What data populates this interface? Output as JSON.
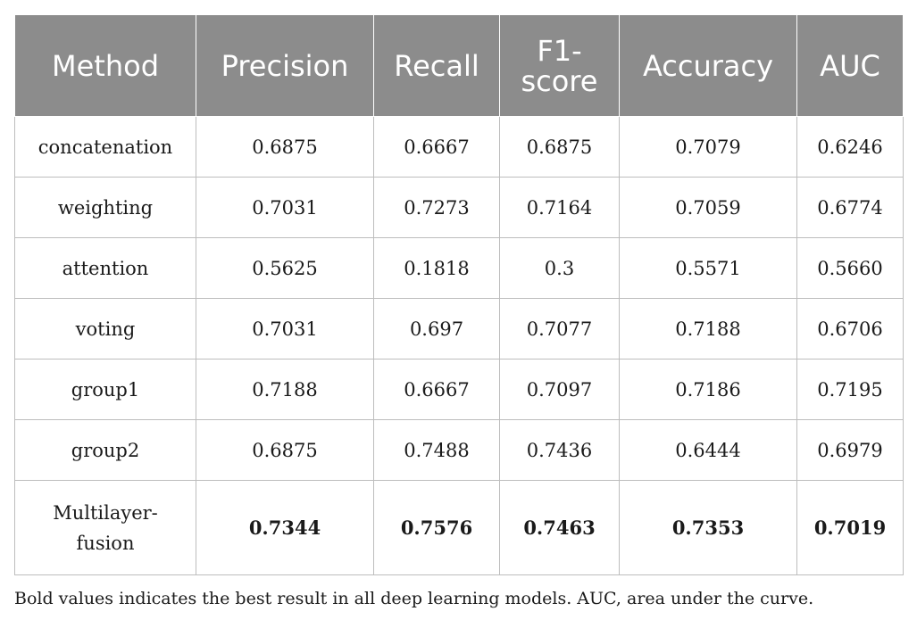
{
  "table": {
    "headers": [
      "Method",
      "Precision",
      "Recall",
      "F1-\nscore",
      "Accuracy",
      "AUC"
    ],
    "rows": [
      {
        "method": "concatenation",
        "values": [
          "0.6875",
          "0.6667",
          "0.6875",
          "0.7079",
          "0.6246"
        ],
        "bold": false
      },
      {
        "method": "weighting",
        "values": [
          "0.7031",
          "0.7273",
          "0.7164",
          "0.7059",
          "0.6774"
        ],
        "bold": false
      },
      {
        "method": "attention",
        "values": [
          "0.5625",
          "0.1818",
          "0.3",
          "0.5571",
          "0.5660"
        ],
        "bold": false
      },
      {
        "method": "voting",
        "values": [
          "0.7031",
          "0.697",
          "0.7077",
          "0.7188",
          "0.6706"
        ],
        "bold": false
      },
      {
        "method": "group1",
        "values": [
          "0.7188",
          "0.6667",
          "0.7097",
          "0.7186",
          "0.7195"
        ],
        "bold": false
      },
      {
        "method": "group2",
        "values": [
          "0.6875",
          "0.7488",
          "0.7436",
          "0.6444",
          "0.6979"
        ],
        "bold": false
      },
      {
        "method": "Multilayer-\nfusion",
        "values": [
          "0.7344",
          "0.7576",
          "0.7463",
          "0.7353",
          "0.7019"
        ],
        "bold": true
      }
    ]
  },
  "footnote": "Bold values indicates the best result in all deep learning models. AUC, area under the curve.",
  "colors": {
    "header_bg": "#8c8c8c",
    "header_text": "#ffffff",
    "grid": "#bdbdbd"
  }
}
